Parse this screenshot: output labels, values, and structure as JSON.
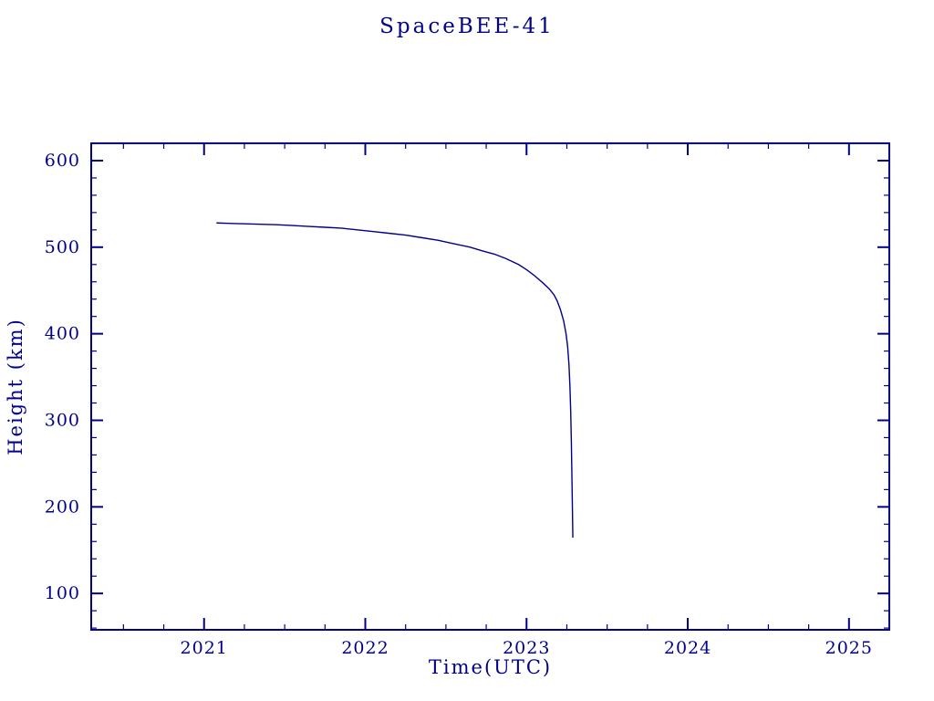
{
  "page": {
    "background": "#ffffff",
    "accent_color": "#00008B"
  },
  "chart_data": {
    "type": "line",
    "title": "SpaceBEE-41",
    "xlabel": "Time(UTC)",
    "ylabel": "Height (km)",
    "xlim": [
      2020.3,
      2025.25
    ],
    "ylim": [
      58,
      620
    ],
    "x_ticks": [
      2021,
      2022,
      2023,
      2024,
      2025
    ],
    "y_ticks": [
      100,
      200,
      300,
      400,
      500,
      600
    ],
    "x_minor_step": 0.25,
    "y_minor_step": 20,
    "grid": false,
    "legend": "none",
    "line_color": "#00008B",
    "series": [
      {
        "name": "orbital-height",
        "points": [
          [
            2021.08,
            528
          ],
          [
            2021.15,
            527.5
          ],
          [
            2021.25,
            527
          ],
          [
            2021.35,
            526.5
          ],
          [
            2021.45,
            526
          ],
          [
            2021.55,
            525
          ],
          [
            2021.65,
            524
          ],
          [
            2021.75,
            523
          ],
          [
            2021.85,
            522
          ],
          [
            2021.95,
            520
          ],
          [
            2022.05,
            518
          ],
          [
            2022.15,
            516
          ],
          [
            2022.25,
            514
          ],
          [
            2022.35,
            511
          ],
          [
            2022.45,
            508
          ],
          [
            2022.55,
            504
          ],
          [
            2022.65,
            500
          ],
          [
            2022.72,
            496
          ],
          [
            2022.8,
            492
          ],
          [
            2022.87,
            487
          ],
          [
            2022.95,
            480
          ],
          [
            2023.0,
            474
          ],
          [
            2023.05,
            467
          ],
          [
            2023.1,
            459
          ],
          [
            2023.14,
            452
          ],
          [
            2023.17,
            445
          ],
          [
            2023.19,
            438
          ],
          [
            2023.21,
            428
          ],
          [
            2023.23,
            415
          ],
          [
            2023.245,
            400
          ],
          [
            2023.255,
            385
          ],
          [
            2023.263,
            365
          ],
          [
            2023.269,
            340
          ],
          [
            2023.274,
            310
          ],
          [
            2023.278,
            275
          ],
          [
            2023.281,
            240
          ],
          [
            2023.284,
            205
          ],
          [
            2023.286,
            180
          ],
          [
            2023.287,
            165
          ]
        ]
      }
    ]
  }
}
